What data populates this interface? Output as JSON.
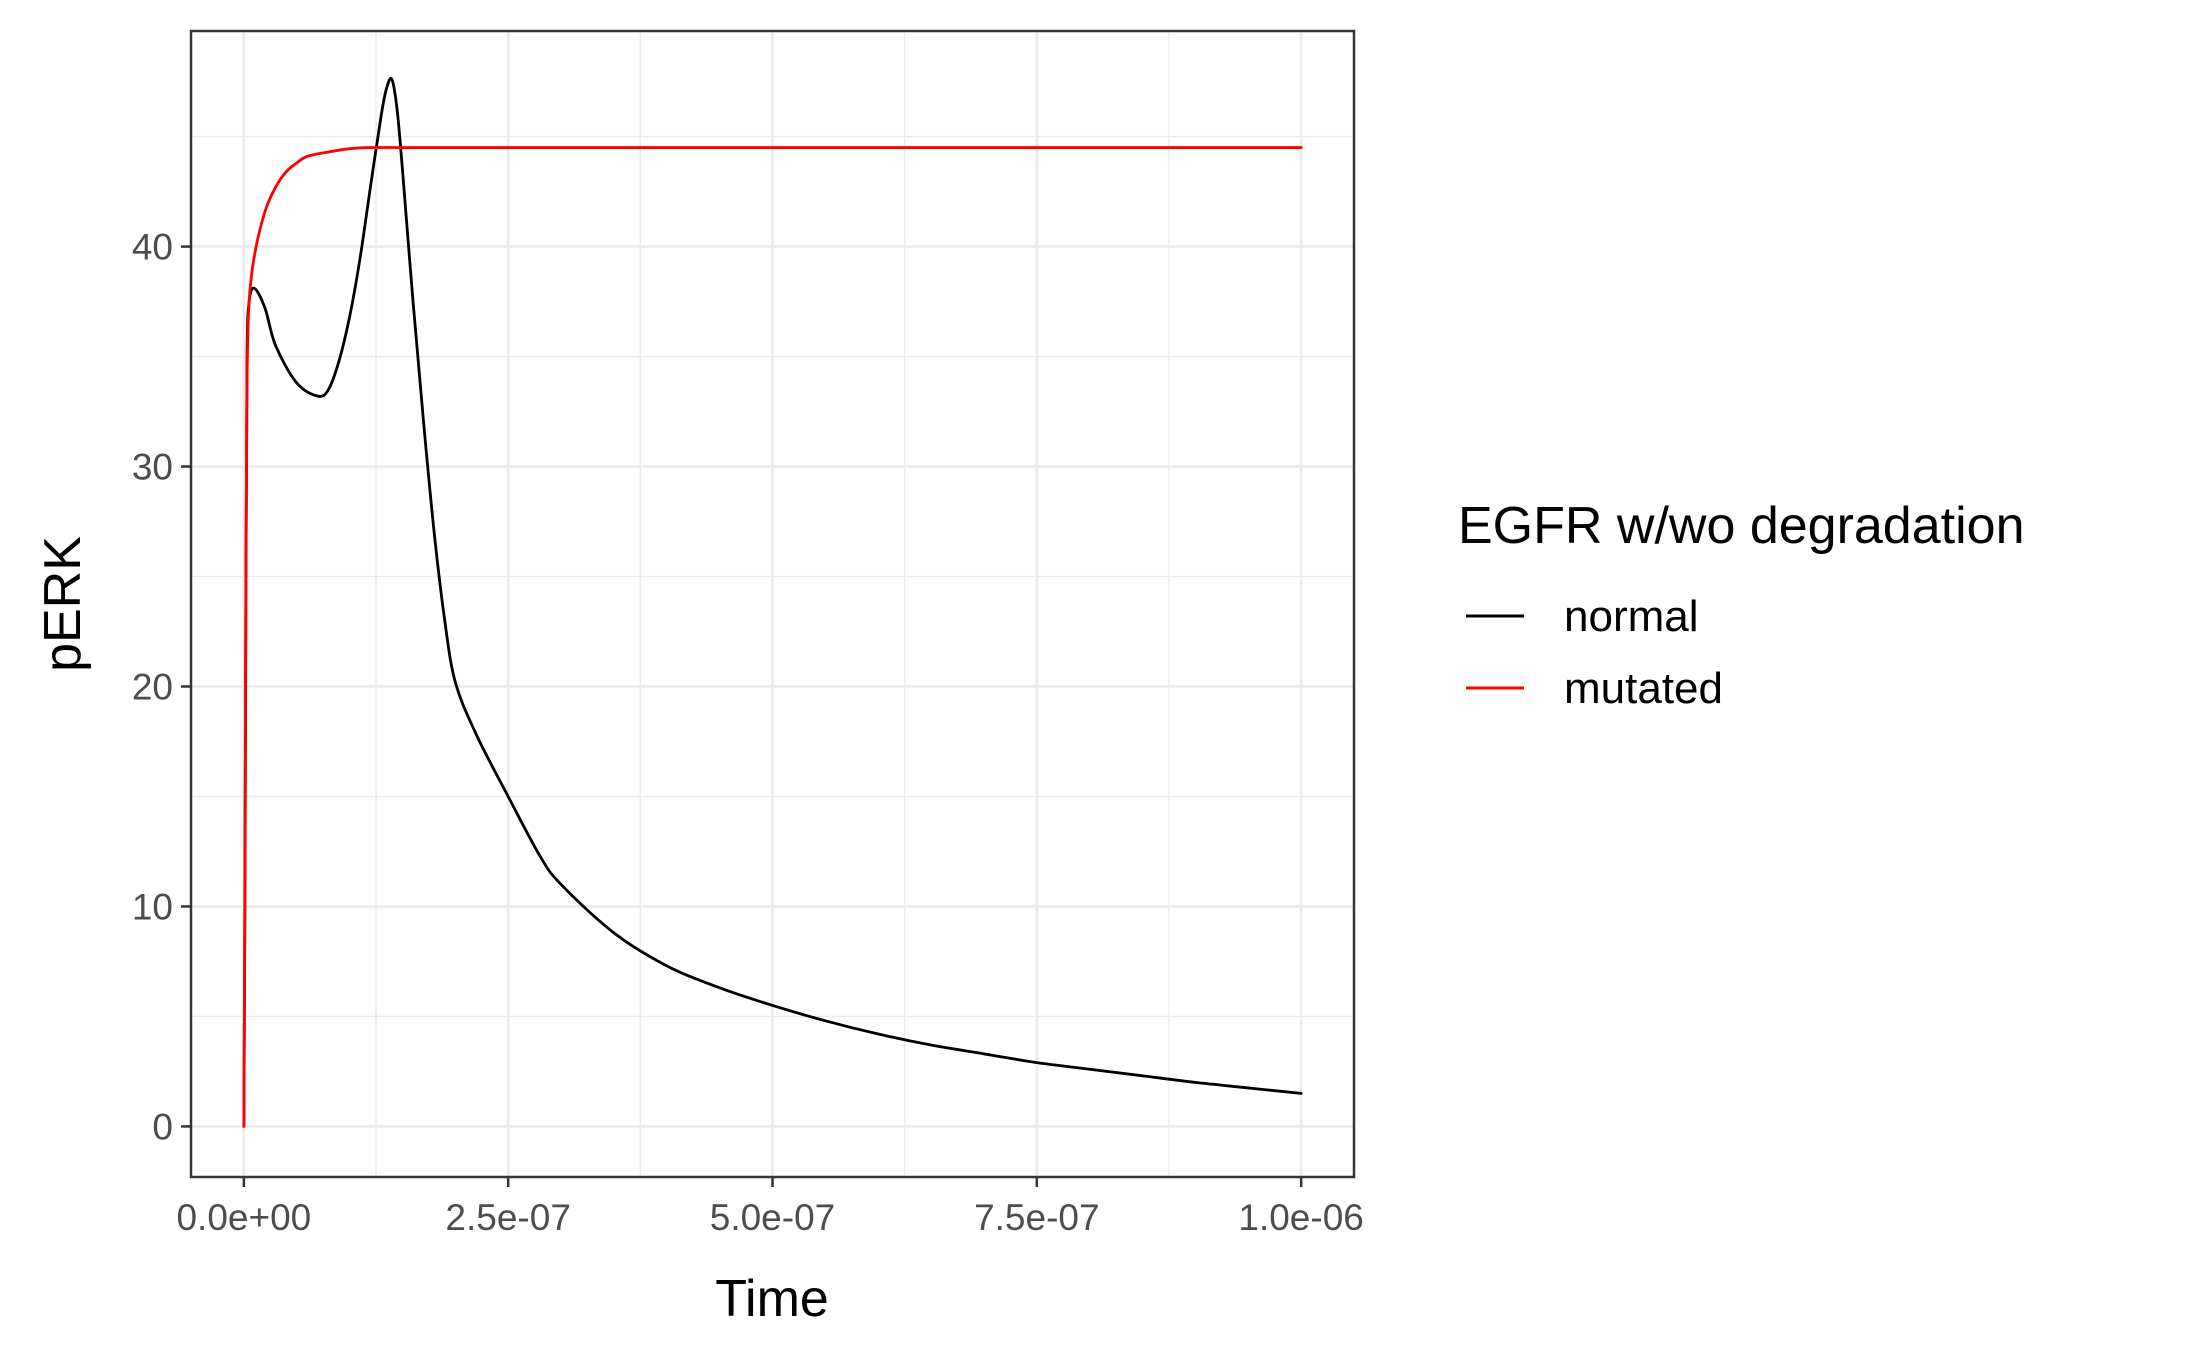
{
  "chart_data": {
    "type": "line",
    "title": "",
    "xlabel": "Time",
    "ylabel": "pERK",
    "xlim": [
      -5e-08,
      1.05e-06
    ],
    "ylim": [
      -2.3,
      49.8
    ],
    "x_ticks": [
      0,
      2.5e-07,
      5e-07,
      7.5e-07,
      1e-06
    ],
    "x_tick_labels": [
      "0.0e+00",
      "2.5e-07",
      "5.0e-07",
      "7.5e-07",
      "1.0e-06"
    ],
    "y_ticks": [
      0,
      10,
      20,
      30,
      40
    ],
    "y_tick_labels": [
      "0",
      "10",
      "20",
      "30",
      "40"
    ],
    "grid": true,
    "legend": {
      "title": "EGFR w/wo degradation",
      "position": "right",
      "entries": [
        "normal",
        "mutated"
      ]
    },
    "series": [
      {
        "name": "normal",
        "color": "#000000",
        "x": [
          0,
          1e-09,
          2e-09,
          3e-09,
          5e-09,
          1e-08,
          2e-08,
          3e-08,
          5e-08,
          7e-08,
          8e-08,
          9e-08,
          1e-07,
          1.1e-07,
          1.2e-07,
          1.3e-07,
          1.35e-07,
          1.4e-07,
          1.45e-07,
          1.5e-07,
          1.6e-07,
          1.7e-07,
          1.8e-07,
          1.9e-07,
          2e-07,
          2.2e-07,
          2.5e-07,
          2.8e-07,
          3e-07,
          3.5e-07,
          4e-07,
          4.5e-07,
          5e-07,
          5.5e-07,
          6e-07,
          6.5e-07,
          7e-07,
          7.5e-07,
          8e-07,
          8.5e-07,
          9e-07,
          9.5e-07,
          1e-06
        ],
        "y": [
          0,
          10,
          25,
          35,
          37.5,
          38.1,
          37.2,
          35.5,
          33.8,
          33.2,
          33.5,
          34.8,
          36.8,
          39.5,
          42.8,
          46.0,
          47.2,
          47.6,
          46.2,
          43.5,
          37.5,
          32.0,
          27.0,
          23.0,
          20.2,
          17.8,
          15.0,
          12.3,
          11.0,
          8.8,
          7.3,
          6.3,
          5.5,
          4.8,
          4.2,
          3.7,
          3.3,
          2.9,
          2.6,
          2.3,
          2.0,
          1.75,
          1.5
        ]
      },
      {
        "name": "mutated",
        "color": "#ff0000",
        "x": [
          0,
          1e-09,
          2e-09,
          3e-09,
          5e-09,
          1e-08,
          2e-08,
          3e-08,
          4e-08,
          5e-08,
          6e-08,
          8e-08,
          1e-07,
          1.2e-07,
          1.5e-07,
          2e-07,
          3e-07,
          5e-07,
          7.5e-07,
          1e-06
        ],
        "y": [
          0,
          12,
          26,
          34,
          37.5,
          39.6,
          41.6,
          42.7,
          43.4,
          43.8,
          44.1,
          44.3,
          44.45,
          44.5,
          44.5,
          44.5,
          44.5,
          44.5,
          44.5,
          44.5
        ]
      }
    ]
  }
}
